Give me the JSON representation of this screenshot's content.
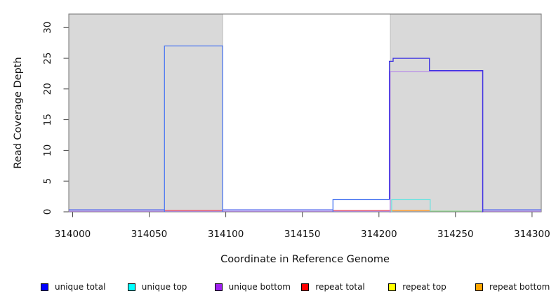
{
  "chart_data": {
    "type": "line",
    "step": true,
    "title": "",
    "xlabel": "Coordinate in Reference Genome",
    "ylabel": "Read Coverage Depth",
    "xlim": [
      313997.5,
      314306
    ],
    "ylim": [
      0,
      32.2
    ],
    "xticks": [
      314000,
      314050,
      314100,
      314150,
      314200,
      314250,
      314300
    ],
    "yticks": [
      0,
      5,
      10,
      15,
      20,
      25,
      30
    ],
    "grid": false,
    "legend_position": "bottom",
    "shaded_regions": [
      {
        "from": 313997.5,
        "to": 314098,
        "fill": "#d9d9d9"
      },
      {
        "from": 314207.5,
        "to": 314306,
        "fill": "#d9d9d9"
      }
    ],
    "series": [
      {
        "name": "unique total",
        "legend_color": "#0000ff",
        "points": [
          [
            313997.5,
            0
          ],
          [
            314060,
            0
          ],
          [
            314060,
            27
          ],
          [
            314098,
            27
          ],
          [
            314098,
            0
          ],
          [
            314170,
            0
          ],
          [
            314170,
            2
          ],
          [
            314207,
            2
          ],
          [
            314207,
            24
          ],
          [
            314209,
            24
          ],
          [
            314209,
            25
          ],
          [
            314233,
            25
          ],
          [
            314233,
            23
          ],
          [
            314268,
            23
          ],
          [
            314268,
            0
          ],
          [
            314306,
            0
          ]
        ]
      },
      {
        "name": "unique top",
        "legend_color": "#00ffff",
        "points": [
          [
            313997.5,
            0
          ],
          [
            314208,
            0
          ],
          [
            314208,
            2
          ],
          [
            314233,
            2
          ],
          [
            314233,
            0
          ],
          [
            314306,
            0
          ]
        ]
      },
      {
        "name": "unique bottom",
        "legend_color": "#a020f0",
        "points": [
          [
            313997.5,
            0
          ],
          [
            314207,
            0
          ],
          [
            314207,
            23
          ],
          [
            314268,
            23
          ],
          [
            314268,
            0
          ],
          [
            314306,
            0
          ]
        ]
      },
      {
        "name": "repeat total",
        "legend_color": "#ff0000",
        "points": [
          [
            313997.5,
            0
          ],
          [
            314306,
            0
          ]
        ]
      },
      {
        "name": "repeat top",
        "legend_color": "#ffff00",
        "points": [
          [
            313997.5,
            0
          ],
          [
            314306,
            0
          ]
        ]
      },
      {
        "name": "repeat bottom",
        "legend_color": "#ffa500",
        "points": [
          [
            313997.5,
            0
          ],
          [
            314306,
            0
          ]
        ]
      }
    ]
  },
  "render": {
    "shade_fill": "#d9d9d9",
    "shade_border": "#bdbdbd",
    "box_color": "#7d7d7d",
    "tick_color": "#444444",
    "zero_segments": [
      {
        "from": 313997.5,
        "to": 314060,
        "color": "#4e63ee",
        "dy": -2.8
      },
      {
        "from": 314098,
        "to": 314170,
        "color": "#4e63ee",
        "dy": -2.8
      },
      {
        "from": 314268,
        "to": 314306,
        "color": "#4e63ee",
        "dy": -2.8
      },
      {
        "from": 313997.5,
        "to": 314207,
        "color": "#b78ae8",
        "dy": -0.9
      },
      {
        "from": 314268,
        "to": 314306,
        "color": "#b78ae8",
        "dy": -0.9
      },
      {
        "from": 314060,
        "to": 314098,
        "color": "#e85f72",
        "dy": -1.8
      },
      {
        "from": 314170,
        "to": 314207.5,
        "color": "#e85f72",
        "dy": -1.8
      },
      {
        "from": 314207.5,
        "to": 314233.5,
        "color": "#ff9d2e",
        "dy": -1.8
      },
      {
        "from": 314233.5,
        "to": 314268,
        "color": "#8edc8e",
        "dy": -1.0
      }
    ],
    "elevated_paths": [
      {
        "color": "#b78ae8",
        "dy": 1.4,
        "pts": [
          [
            314207.3,
            0
          ],
          [
            314207.3,
            23
          ],
          [
            314267.6,
            23
          ],
          [
            314267.6,
            0
          ]
        ]
      },
      {
        "color": "#70e2e0",
        "pts": [
          [
            314208.3,
            0
          ],
          [
            314208.3,
            2
          ],
          [
            314233.5,
            2
          ],
          [
            314233.5,
            0.15
          ]
        ]
      },
      {
        "color": "#4d79f1",
        "pts": [
          [
            314060,
            0
          ],
          [
            314060,
            27
          ],
          [
            314098,
            27
          ],
          [
            314098,
            0
          ]
        ]
      },
      {
        "color": "#4d79f1",
        "pts": [
          [
            314170,
            0
          ],
          [
            314170,
            2
          ],
          [
            314206.8,
            2
          ]
        ]
      },
      {
        "color": "#3b30e2",
        "pts": [
          [
            314206.8,
            2
          ],
          [
            314206.8,
            24.5
          ],
          [
            314209.3,
            24.5
          ],
          [
            314209.3,
            25
          ],
          [
            314233,
            25
          ],
          [
            314233,
            23
          ],
          [
            314267.8,
            23
          ],
          [
            314267.8,
            0
          ]
        ]
      }
    ]
  }
}
